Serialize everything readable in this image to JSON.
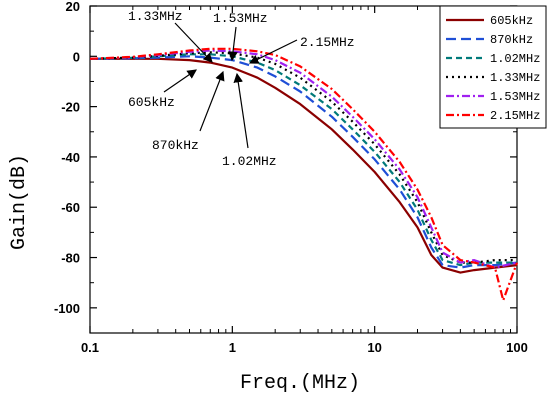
{
  "chart_data": {
    "type": "line",
    "xlabel": "Freq.(MHz)",
    "ylabel": "Gain(dB)",
    "x_scale": "log",
    "xlim": [
      0.1,
      100
    ],
    "ylim": [
      -110,
      20
    ],
    "x_ticks": [
      0.1,
      1,
      10,
      100
    ],
    "x_tick_labels": [
      "0.1",
      "1",
      "10",
      "100"
    ],
    "y_ticks": [
      20,
      0,
      -20,
      -40,
      -60,
      -80,
      -100
    ],
    "y_tick_labels": [
      "20",
      "0",
      "-20",
      "-40",
      "-60",
      "-80",
      "-100"
    ],
    "grid": false,
    "legend_position": "top-right",
    "series": [
      {
        "name": "605kHz",
        "color": "#8b0000",
        "dash": "solid",
        "x": [
          0.1,
          0.2,
          0.3,
          0.5,
          0.7,
          1,
          1.5,
          2,
          3,
          5,
          7,
          10,
          15,
          20,
          25,
          30,
          40,
          50,
          70,
          100
        ],
        "y": [
          -1,
          -1,
          -1,
          -1.5,
          -2.5,
          -4.5,
          -8.5,
          -12.5,
          -19,
          -29,
          -37,
          -46,
          -58,
          -68,
          -79,
          -84,
          -86,
          -85,
          -84,
          -83
        ]
      },
      {
        "name": "870kHz",
        "color": "#1f4fd6",
        "dash": "long",
        "x": [
          0.1,
          0.2,
          0.3,
          0.5,
          0.7,
          1,
          1.5,
          2,
          3,
          5,
          7,
          10,
          15,
          20,
          25,
          30,
          40,
          50,
          70,
          100
        ],
        "y": [
          -1,
          -0.8,
          -0.5,
          0,
          -0.5,
          -1.5,
          -4.5,
          -8,
          -14,
          -24,
          -32,
          -41,
          -53,
          -64,
          -76,
          -83,
          -84,
          -83,
          -83,
          -82
        ]
      },
      {
        "name": "1.02MHz",
        "color": "#007a7a",
        "dash": "medium",
        "x": [
          0.1,
          0.2,
          0.3,
          0.5,
          0.7,
          1,
          1.5,
          2,
          3,
          5,
          7,
          10,
          15,
          20,
          25,
          30,
          40,
          50,
          70,
          100
        ],
        "y": [
          -1,
          -0.6,
          0,
          0.8,
          0.8,
          0,
          -2.5,
          -5.5,
          -11.5,
          -21,
          -29,
          -38,
          -50,
          -61,
          -73,
          -81,
          -83,
          -82,
          -82,
          -82
        ]
      },
      {
        "name": "1.33MHz",
        "color": "#000000",
        "dash": "dot",
        "x": [
          0.1,
          0.2,
          0.3,
          0.5,
          0.7,
          1,
          1.5,
          2,
          3,
          5,
          7,
          10,
          15,
          20,
          25,
          30,
          40,
          50,
          70,
          100
        ],
        "y": [
          -1,
          -0.5,
          0.2,
          1.2,
          1.6,
          1.2,
          -0.5,
          -3,
          -8.5,
          -18,
          -26,
          -35,
          -47,
          -58,
          -70,
          -79,
          -82,
          -82,
          -81,
          -81
        ]
      },
      {
        "name": "1.53MHz",
        "color": "#a020f0",
        "dash": "dashdot",
        "x": [
          0.1,
          0.2,
          0.3,
          0.5,
          0.7,
          1,
          1.5,
          2,
          3,
          5,
          7,
          10,
          15,
          20,
          25,
          30,
          40,
          50,
          70,
          100
        ],
        "y": [
          -1,
          -0.4,
          0.5,
          1.8,
          2.3,
          2,
          0.8,
          -1.5,
          -6.5,
          -16,
          -24,
          -33,
          -45,
          -56,
          -68,
          -78,
          -82,
          -81,
          -84,
          -82
        ]
      },
      {
        "name": "2.15MHz",
        "color": "#ff0000",
        "dash": "dashdot",
        "x": [
          0.1,
          0.2,
          0.3,
          0.5,
          0.7,
          1,
          1.5,
          2,
          3,
          5,
          7,
          10,
          15,
          20,
          25,
          30,
          40,
          50,
          70,
          80,
          100
        ],
        "y": [
          -1,
          -0.2,
          0.8,
          2.3,
          3,
          3,
          2,
          0.5,
          -4,
          -13,
          -21,
          -30,
          -42,
          -53,
          -64,
          -75,
          -81,
          -82,
          -84,
          -97,
          -82
        ]
      }
    ],
    "annotations": [
      {
        "text": "1.33MHz"
      },
      {
        "text": "1.53MHz"
      },
      {
        "text": "2.15MHz"
      },
      {
        "text": "605kHz"
      },
      {
        "text": "870kHz"
      },
      {
        "text": "1.02MHz"
      }
    ]
  }
}
